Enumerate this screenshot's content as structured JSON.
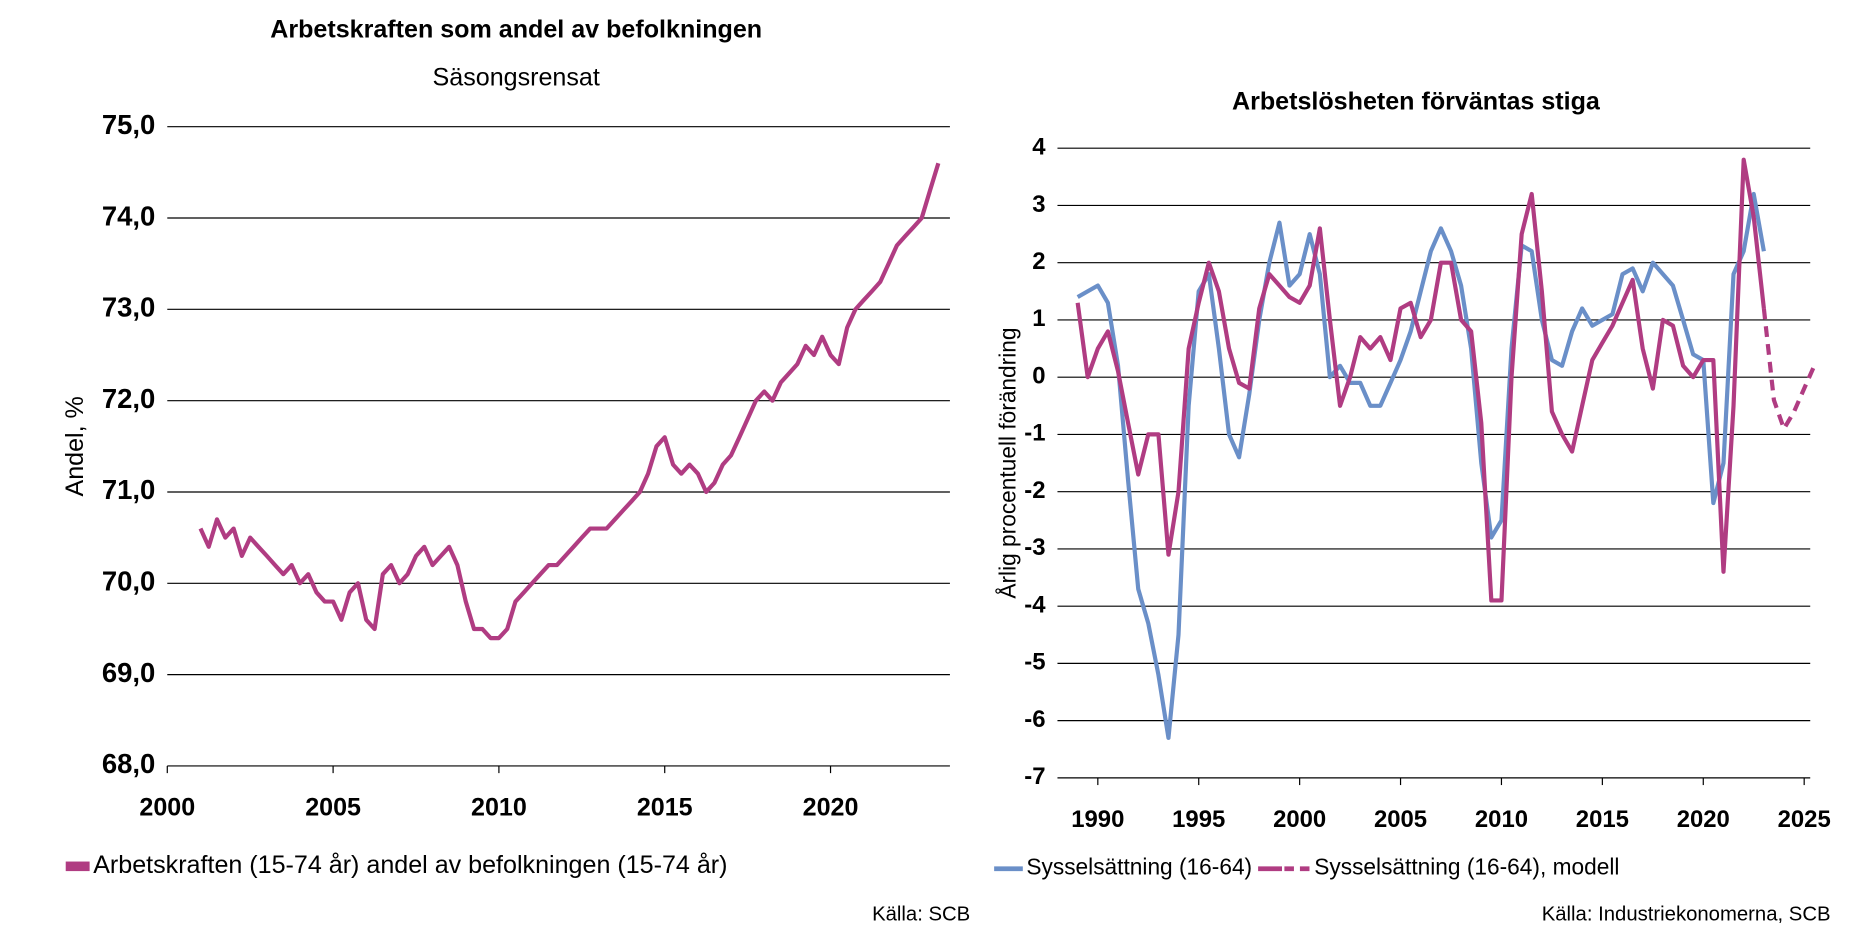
{
  "chart_data": [
    {
      "type": "line",
      "title": "Arbetskraften som andel av befolkningen",
      "subtitle": "Säsongsrensat",
      "y_label": "Andel, %",
      "source": "Källa: SCB",
      "xlim": [
        2000,
        2023.6
      ],
      "xticks": [
        2000,
        2005,
        2010,
        2015,
        2020
      ],
      "ylim": [
        68,
        75
      ],
      "yticks": [
        {
          "value": 68,
          "label": "68,0"
        },
        {
          "value": 69,
          "label": "69,0"
        },
        {
          "value": 70,
          "label": "70,0"
        },
        {
          "value": 71,
          "label": "71,0"
        },
        {
          "value": 72,
          "label": "72,0"
        },
        {
          "value": 73,
          "label": "73,0"
        },
        {
          "value": 74,
          "label": "74,0"
        },
        {
          "value": 75,
          "label": "75,0"
        }
      ],
      "grid": true,
      "series": [
        {
          "name": "Arbetskraften (15-74 år) andel av befolkningen (15-74 år)",
          "color": "#b03c82",
          "x": [
            2001,
            2001.25,
            2001.5,
            2001.75,
            2002,
            2002.25,
            2002.5,
            2002.75,
            2003,
            2003.25,
            2003.5,
            2003.75,
            2004,
            2004.25,
            2004.5,
            2004.75,
            2005,
            2005.25,
            2005.5,
            2005.75,
            2006,
            2006.25,
            2006.5,
            2006.75,
            2007,
            2007.25,
            2007.5,
            2007.75,
            2008,
            2008.25,
            2008.5,
            2008.75,
            2009,
            2009.25,
            2009.5,
            2009.75,
            2010,
            2010.25,
            2010.5,
            2010.75,
            2011,
            2011.25,
            2011.5,
            2011.75,
            2012,
            2012.25,
            2012.5,
            2012.75,
            2013,
            2013.25,
            2013.5,
            2013.75,
            2014,
            2014.25,
            2014.5,
            2014.75,
            2015,
            2015.25,
            2015.5,
            2015.75,
            2016,
            2016.25,
            2016.5,
            2016.75,
            2017,
            2017.25,
            2017.5,
            2017.75,
            2018,
            2018.25,
            2018.5,
            2018.75,
            2019,
            2019.25,
            2019.5,
            2019.75,
            2020,
            2020.25,
            2020.5,
            2020.75,
            2021,
            2021.25,
            2021.5,
            2021.75,
            2022,
            2022.25,
            2022.5,
            2022.75,
            2023,
            2023.25
          ],
          "values": [
            70.6,
            70.4,
            70.7,
            70.5,
            70.6,
            70.3,
            70.5,
            70.4,
            70.3,
            70.2,
            70.1,
            70.2,
            70.0,
            70.1,
            69.9,
            69.8,
            69.8,
            69.6,
            69.9,
            70.0,
            69.6,
            69.5,
            70.1,
            70.2,
            70.0,
            70.1,
            70.3,
            70.4,
            70.2,
            70.3,
            70.4,
            70.2,
            69.8,
            69.5,
            69.5,
            69.4,
            69.4,
            69.5,
            69.8,
            69.9,
            70.0,
            70.1,
            70.2,
            70.2,
            70.3,
            70.4,
            70.5,
            70.6,
            70.6,
            70.6,
            70.7,
            70.8,
            70.9,
            71.0,
            71.2,
            71.5,
            71.6,
            71.3,
            71.2,
            71.3,
            71.2,
            71.0,
            71.1,
            71.3,
            71.4,
            71.6,
            71.8,
            72.0,
            72.1,
            72.0,
            72.2,
            72.3,
            72.4,
            72.6,
            72.5,
            72.7,
            72.5,
            72.4,
            72.8,
            73.0,
            73.1,
            73.2,
            73.3,
            73.5,
            73.7,
            73.8,
            73.9,
            74.0,
            74.3,
            74.6
          ]
        }
      ]
    },
    {
      "type": "line",
      "title": "Arbetslösheten förväntas stiga",
      "y_label": "Årlig procentuell förändring",
      "source": "Källa: Industriekonomerna, SCB",
      "xlim": [
        1988,
        2025.3
      ],
      "xticks": [
        1990,
        1995,
        2000,
        2005,
        2010,
        2015,
        2020,
        2025
      ],
      "ylim": [
        -7,
        4
      ],
      "yticks": [
        -7,
        -6,
        -5,
        -4,
        -3,
        -2,
        -1,
        0,
        1,
        2,
        3,
        4
      ],
      "grid": true,
      "series": [
        {
          "name": "Sysselsättning (16-64)",
          "color": "#6a8fc8",
          "x": [
            1989,
            1989.5,
            1990,
            1990.5,
            1991,
            1991.5,
            1992,
            1992.5,
            1993,
            1993.5,
            1994,
            1994.5,
            1995,
            1995.5,
            1996,
            1996.5,
            1997,
            1997.5,
            1998,
            1998.5,
            1999,
            1999.5,
            2000,
            2000.5,
            2001,
            2001.5,
            2002,
            2002.5,
            2003,
            2003.5,
            2004,
            2004.5,
            2005,
            2005.5,
            2006,
            2006.5,
            2007,
            2007.5,
            2008,
            2008.5,
            2009,
            2009.5,
            2010,
            2010.5,
            2011,
            2011.5,
            2012,
            2012.5,
            2013,
            2013.5,
            2014,
            2014.5,
            2015,
            2015.5,
            2016,
            2016.5,
            2017,
            2017.5,
            2018,
            2018.5,
            2019,
            2019.5,
            2020,
            2020.5,
            2021,
            2021.5,
            2022,
            2022.5,
            2023
          ],
          "values": [
            1.4,
            1.5,
            1.6,
            1.3,
            0.2,
            -1.8,
            -3.7,
            -4.3,
            -5.2,
            -6.3,
            -4.5,
            -0.5,
            1.5,
            1.8,
            0.5,
            -1.0,
            -1.4,
            -0.3,
            1.0,
            2.0,
            2.7,
            1.6,
            1.8,
            2.5,
            1.8,
            0.0,
            0.2,
            -0.1,
            -0.1,
            -0.5,
            -0.5,
            -0.1,
            0.3,
            0.8,
            1.5,
            2.2,
            2.6,
            2.2,
            1.6,
            0.5,
            -1.5,
            -2.8,
            -2.5,
            0.5,
            2.3,
            2.2,
            1.0,
            0.3,
            0.2,
            0.8,
            1.2,
            0.9,
            1.0,
            1.1,
            1.8,
            1.9,
            1.5,
            2.0,
            1.8,
            1.6,
            1.0,
            0.4,
            0.3,
            -2.2,
            -1.5,
            1.8,
            2.2,
            3.2,
            2.2
          ]
        },
        {
          "name": "Sysselsättning (16-64), modell",
          "color": "#b03c82",
          "forecast_from": 2023,
          "x": [
            1989,
            1989.5,
            1990,
            1990.5,
            1991,
            1991.5,
            1992,
            1992.5,
            1993,
            1993.5,
            1994,
            1994.5,
            1995,
            1995.5,
            1996,
            1996.5,
            1997,
            1997.5,
            1998,
            1998.5,
            1999,
            1999.5,
            2000,
            2000.5,
            2001,
            2001.5,
            2002,
            2002.5,
            2003,
            2003.5,
            2004,
            2004.5,
            2005,
            2005.5,
            2006,
            2006.5,
            2007,
            2007.5,
            2008,
            2008.5,
            2009,
            2009.5,
            2010,
            2010.5,
            2011,
            2011.5,
            2012,
            2012.5,
            2013,
            2013.5,
            2014,
            2014.5,
            2015,
            2015.5,
            2016,
            2016.5,
            2017,
            2017.5,
            2018,
            2018.5,
            2019,
            2019.5,
            2020,
            2020.5,
            2021,
            2021.5,
            2022,
            2022.5,
            2023,
            2023.5,
            2024,
            2024.5,
            2025,
            2025.5
          ],
          "values": [
            1.3,
            0.0,
            0.5,
            0.8,
            0.1,
            -0.8,
            -1.7,
            -1.0,
            -1.0,
            -3.1,
            -2.0,
            0.5,
            1.3,
            2.0,
            1.5,
            0.5,
            -0.1,
            -0.2,
            1.2,
            1.8,
            1.6,
            1.4,
            1.3,
            1.6,
            2.6,
            1.0,
            -0.5,
            0.0,
            0.7,
            0.5,
            0.7,
            0.3,
            1.2,
            1.3,
            0.7,
            1.0,
            2.0,
            2.0,
            1.0,
            0.8,
            -0.8,
            -3.9,
            -3.9,
            0.0,
            2.5,
            3.2,
            1.5,
            -0.6,
            -1.0,
            -1.3,
            -0.5,
            0.3,
            0.6,
            0.9,
            1.3,
            1.7,
            0.5,
            -0.2,
            1.0,
            0.9,
            0.2,
            0.0,
            0.3,
            0.3,
            -3.4,
            -0.5,
            3.8,
            2.8,
            1.2,
            -0.4,
            -0.9,
            -0.6,
            -0.2,
            0.2
          ]
        }
      ]
    }
  ]
}
